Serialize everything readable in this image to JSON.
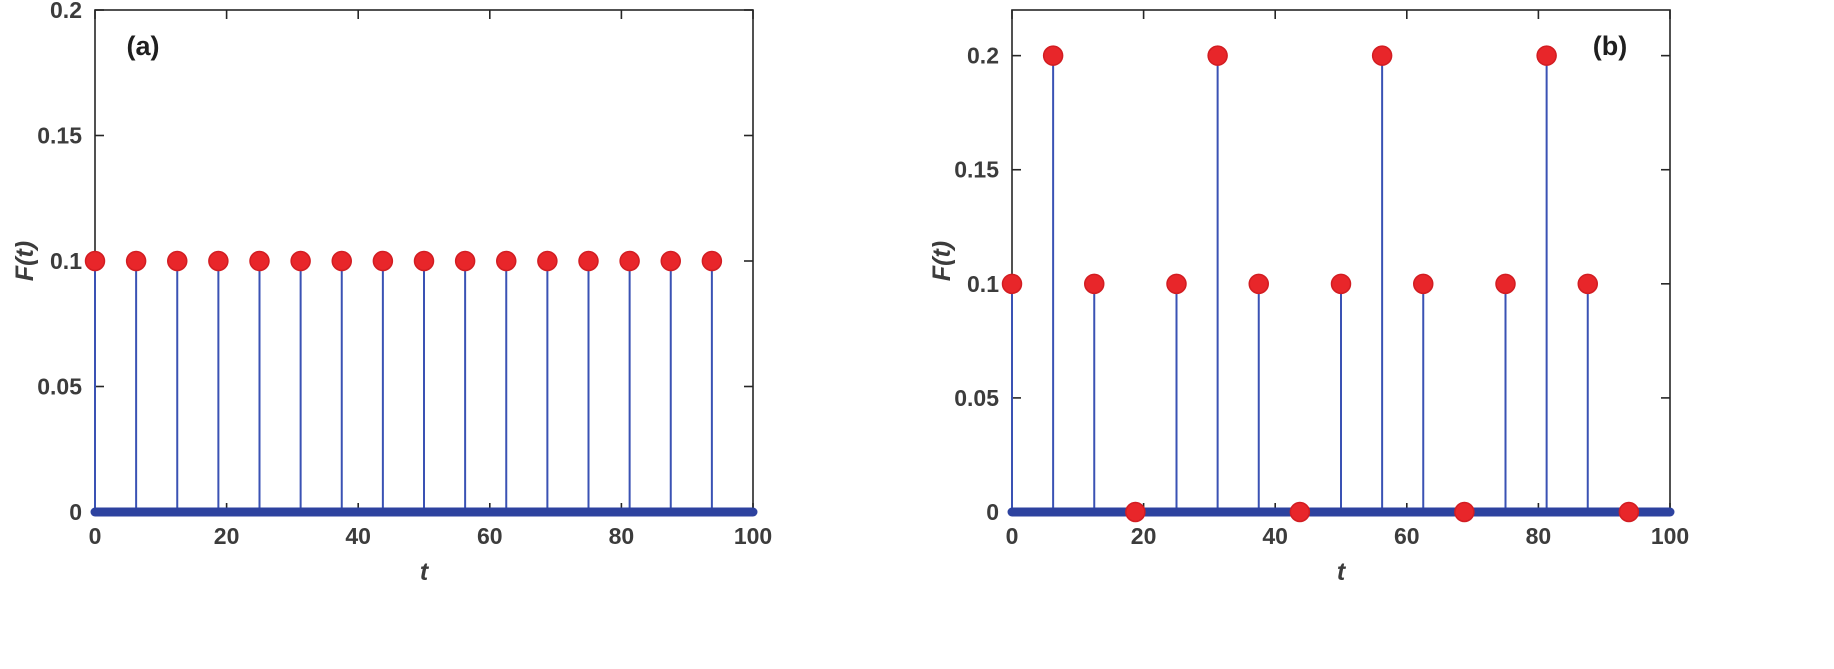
{
  "figure": {
    "background": "#ffffff",
    "panel_labels": [
      "(a)",
      "(b)"
    ]
  },
  "colors": {
    "stem_line": "#3a52b4",
    "baseline": "#2d429f",
    "marker_fill": "#e8262a",
    "marker_edge": "#d21d22",
    "axis": "#262626",
    "text": "#3c3c3c",
    "panel_label_text": "#1f1f1f"
  },
  "chart_data": [
    {
      "type": "stem",
      "panel_label": "(a)",
      "panel_label_position": "top-left",
      "xlabel": "t",
      "ylabel": "F(t)",
      "xlim": [
        0,
        100
      ],
      "ylim": [
        0,
        0.2
      ],
      "xticks": [
        0,
        20,
        40,
        60,
        80,
        100
      ],
      "xtick_labels": [
        "0",
        "20",
        "40",
        "60",
        "80",
        "100"
      ],
      "yticks": [
        0,
        0.05,
        0.1,
        0.15,
        0.2
      ],
      "ytick_labels": [
        "0",
        "0.05",
        "0.1",
        "0.15",
        "0.2"
      ],
      "baseline_y": 0,
      "grid": false,
      "legend": null,
      "x": [
        0,
        6.25,
        12.5,
        18.75,
        25,
        31.25,
        37.5,
        43.75,
        50,
        56.25,
        62.5,
        68.75,
        75,
        81.25,
        87.5,
        93.75
      ],
      "y": [
        0.1,
        0.1,
        0.1,
        0.1,
        0.1,
        0.1,
        0.1,
        0.1,
        0.1,
        0.1,
        0.1,
        0.1,
        0.1,
        0.1,
        0.1,
        0.1
      ]
    },
    {
      "type": "stem",
      "panel_label": "(b)",
      "panel_label_position": "top-right",
      "xlabel": "t",
      "ylabel": "F(t)",
      "xlim": [
        0,
        100
      ],
      "ylim": [
        0,
        0.22
      ],
      "xticks": [
        0,
        20,
        40,
        60,
        80,
        100
      ],
      "xtick_labels": [
        "0",
        "20",
        "40",
        "60",
        "80",
        "100"
      ],
      "yticks": [
        0,
        0.05,
        0.1,
        0.15,
        0.2
      ],
      "ytick_labels": [
        "0",
        "0.05",
        "0.1",
        "0.15",
        "0.2"
      ],
      "baseline_y": 0,
      "grid": false,
      "legend": null,
      "x": [
        0,
        6.25,
        12.5,
        18.75,
        25,
        31.25,
        37.5,
        43.75,
        50,
        56.25,
        62.5,
        68.75,
        75,
        81.25,
        87.5,
        93.75
      ],
      "y": [
        0.1,
        0.2,
        0.1,
        0,
        0.1,
        0.2,
        0.1,
        0,
        0.1,
        0.2,
        0.1,
        0,
        0.1,
        0.2,
        0.1,
        0
      ]
    }
  ]
}
